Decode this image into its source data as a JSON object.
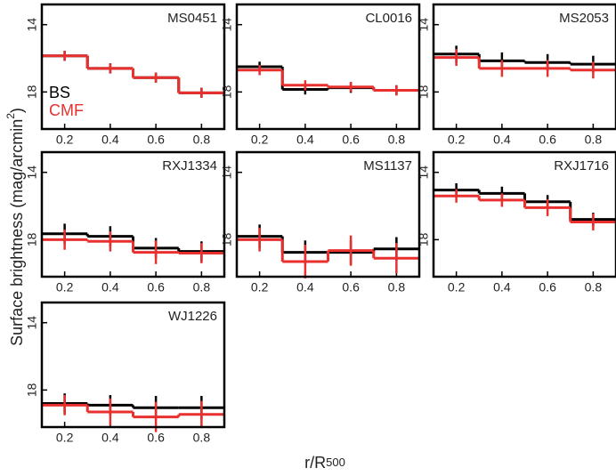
{
  "chart_data": [
    {
      "type": "step",
      "title": "MS0451",
      "x": [
        0.2,
        0.4,
        0.6,
        0.8
      ],
      "bins": [
        0.1,
        0.3,
        0.5,
        0.7,
        0.9
      ],
      "xlim": [
        0.1,
        0.9
      ],
      "ylim": [
        20.2,
        12.8
      ],
      "xticks": [
        0.2,
        0.4,
        0.6,
        0.8
      ],
      "yticks": [
        14,
        18
      ],
      "series": [
        {
          "name": "BS",
          "color": "#000000",
          "values": [
            15.85,
            16.6,
            17.15,
            18.05
          ],
          "errors": [
            0.3,
            0.3,
            0.3,
            0.3
          ]
        },
        {
          "name": "CMF",
          "color": "#e8312f",
          "values": [
            15.85,
            16.6,
            17.15,
            18.05
          ],
          "errors": [
            0.3,
            0.3,
            0.3,
            0.3
          ]
        }
      ],
      "y_label": {
        "main": "Surface brightness (mag/arcmin",
        "superscript": "2",
        "end": ")"
      },
      "x_label": {
        "main": "r/R",
        "subscript": "500"
      }
    },
    {
      "type": "step",
      "title": "CL0016",
      "x": [
        0.2,
        0.4,
        0.6,
        0.8
      ],
      "bins": [
        0.1,
        0.3,
        0.5,
        0.7,
        0.9
      ],
      "xlim": [
        0.1,
        0.9
      ],
      "ylim": [
        20.2,
        12.8
      ],
      "xticks": [
        0.2,
        0.4,
        0.6,
        0.8
      ],
      "yticks": [
        14,
        18
      ],
      "series": [
        {
          "name": "BS",
          "color": "#000000",
          "values": [
            16.5,
            17.85,
            17.75,
            17.9
          ],
          "errors": [
            0.3,
            0.3,
            0.3,
            0.3
          ]
        },
        {
          "name": "CMF",
          "color": "#e8312f",
          "values": [
            16.7,
            17.6,
            17.7,
            17.9
          ],
          "errors": [
            0.3,
            0.3,
            0.3,
            0.3
          ]
        }
      ]
    },
    {
      "type": "step",
      "title": "MS2053",
      "x": [
        0.2,
        0.4,
        0.6,
        0.8
      ],
      "bins": [
        0.1,
        0.3,
        0.5,
        0.7,
        0.9
      ],
      "xlim": [
        0.1,
        0.9
      ],
      "ylim": [
        20.2,
        12.8
      ],
      "xticks": [
        0.2,
        0.4,
        0.6,
        0.8
      ],
      "yticks": [
        14,
        18
      ],
      "series": [
        {
          "name": "BS",
          "color": "#000000",
          "values": [
            15.75,
            16.15,
            16.25,
            16.35
          ],
          "errors": [
            0.5,
            0.5,
            0.5,
            0.5
          ]
        },
        {
          "name": "CMF",
          "color": "#e8312f",
          "values": [
            15.95,
            16.6,
            16.6,
            16.7
          ],
          "errors": [
            0.5,
            0.5,
            0.5,
            0.5
          ]
        }
      ]
    },
    {
      "type": "step",
      "title": "RXJ1334",
      "x": [
        0.2,
        0.4,
        0.6,
        0.8
      ],
      "bins": [
        0.1,
        0.3,
        0.5,
        0.7,
        0.9
      ],
      "xlim": [
        0.1,
        0.9
      ],
      "ylim": [
        20.2,
        12.8
      ],
      "xticks": [
        0.2,
        0.4,
        0.6,
        0.8
      ],
      "yticks": [
        14,
        18
      ],
      "series": [
        {
          "name": "BS",
          "color": "#000000",
          "values": [
            17.65,
            17.8,
            18.5,
            18.7
          ],
          "errors": [
            0.6,
            0.6,
            0.6,
            0.6
          ]
        },
        {
          "name": "CMF",
          "color": "#e8312f",
          "values": [
            18.0,
            18.1,
            18.75,
            18.8
          ],
          "errors": [
            0.6,
            0.6,
            0.7,
            0.6
          ]
        }
      ]
    },
    {
      "type": "step",
      "title": "MS1137",
      "x": [
        0.2,
        0.4,
        0.6,
        0.8
      ],
      "bins": [
        0.1,
        0.3,
        0.5,
        0.7,
        0.9
      ],
      "xlim": [
        0.1,
        0.9
      ],
      "ylim": [
        20.2,
        12.8
      ],
      "xticks": [
        0.2,
        0.4,
        0.6,
        0.8
      ],
      "yticks": [
        14,
        18
      ],
      "series": [
        {
          "name": "BS",
          "color": "#000000",
          "values": [
            17.8,
            18.75,
            18.75,
            18.55
          ],
          "errors": [
            0.7,
            0.7,
            0.7,
            0.7
          ]
        },
        {
          "name": "CMF",
          "color": "#e8312f",
          "values": [
            18.0,
            19.3,
            18.65,
            19.1
          ],
          "errors": [
            0.7,
            1.0,
            0.9,
            0.9
          ]
        }
      ]
    },
    {
      "type": "step",
      "title": "RXJ1716",
      "x": [
        0.2,
        0.4,
        0.6,
        0.8
      ],
      "bins": [
        0.1,
        0.3,
        0.5,
        0.7,
        0.9
      ],
      "xlim": [
        0.1,
        0.9
      ],
      "ylim": [
        20.2,
        12.8
      ],
      "xticks": [
        0.2,
        0.4,
        0.6,
        0.8
      ],
      "yticks": [
        14,
        18
      ],
      "series": [
        {
          "name": "BS",
          "color": "#000000",
          "values": [
            15.05,
            15.25,
            15.75,
            16.8
          ],
          "errors": [
            0.4,
            0.4,
            0.4,
            0.4
          ]
        },
        {
          "name": "CMF",
          "color": "#e8312f",
          "values": [
            15.4,
            15.65,
            16.1,
            16.95
          ],
          "errors": [
            0.4,
            0.4,
            0.5,
            0.5
          ]
        }
      ]
    },
    {
      "type": "step",
      "title": "WJ1226",
      "x": [
        0.2,
        0.4,
        0.6,
        0.8
      ],
      "bins": [
        0.1,
        0.3,
        0.5,
        0.7,
        0.9
      ],
      "xlim": [
        0.1,
        0.9
      ],
      "ylim": [
        20.2,
        12.8
      ],
      "xticks": [
        0.2,
        0.4,
        0.6,
        0.8
      ],
      "yticks": [
        14,
        18
      ],
      "series": [
        {
          "name": "BS",
          "color": "#000000",
          "values": [
            18.8,
            18.9,
            19.05,
            19.05
          ],
          "errors": [
            0.6,
            0.6,
            0.7,
            0.7
          ]
        },
        {
          "name": "CMF",
          "color": "#e8312f",
          "values": [
            18.9,
            19.3,
            19.6,
            19.45
          ],
          "errors": [
            0.6,
            0.8,
            0.9,
            0.8
          ]
        }
      ]
    }
  ]
}
